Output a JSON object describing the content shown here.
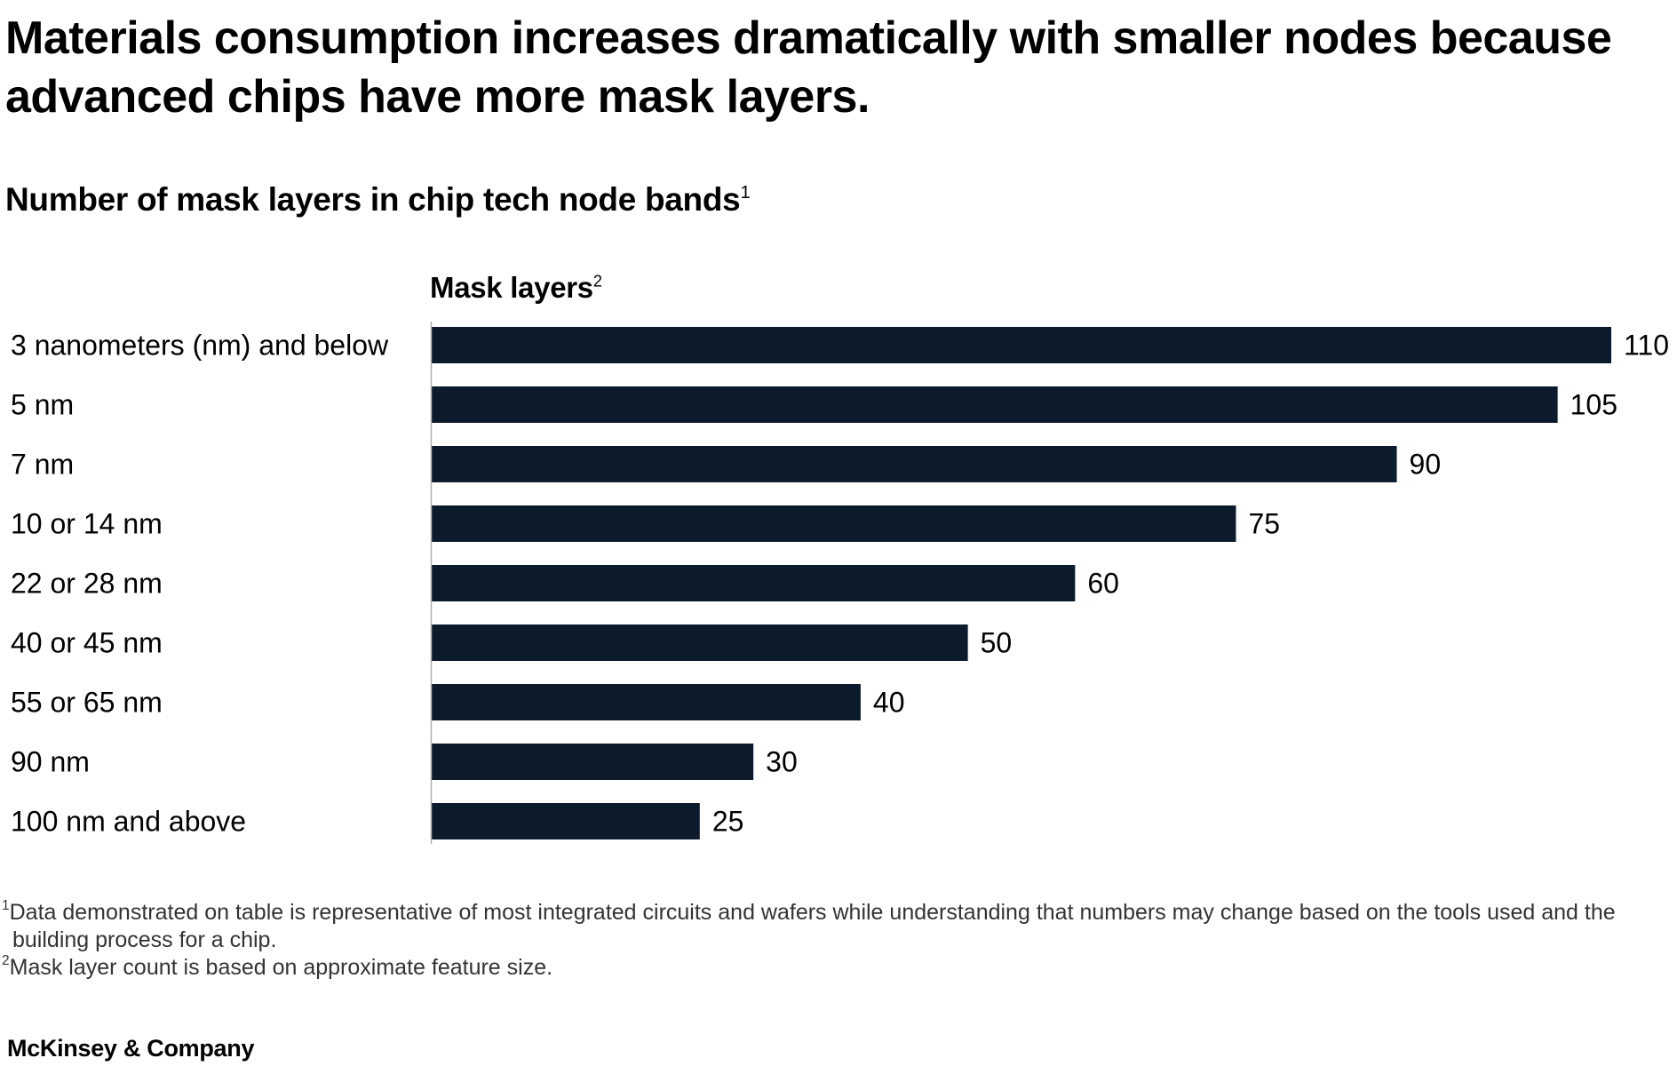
{
  "headline": "Materials consumption increases dramatically with smaller nodes because advanced chips have more mask layers.",
  "subtitle": {
    "text": "Number of mask layers in chip tech node bands",
    "note_ref": "1"
  },
  "chart_data": {
    "type": "bar",
    "orientation": "horizontal",
    "axis_title": "Mask layers",
    "axis_title_note_ref": "2",
    "categories": [
      "3 nanometers (nm) and below",
      "5 nm",
      "7 nm",
      "10 or 14 nm",
      "22 or 28 nm",
      "40 or 45 nm",
      "55 or 65 nm",
      "90 nm",
      "100 nm and above"
    ],
    "values": [
      110,
      105,
      90,
      75,
      60,
      50,
      40,
      30,
      25
    ],
    "value_labels": [
      "110",
      "105",
      "90",
      "75",
      "60",
      "50",
      "40",
      "30",
      "25"
    ],
    "xlim": [
      0,
      110
    ],
    "grid": false,
    "legend": "none",
    "bar_color": "#0b1b2b"
  },
  "footnotes": [
    {
      "marker": "1",
      "text": "Data demonstrated on table is representative of most integrated circuits and wafers while understanding that numbers may change based on the tools used and the building process for a chip."
    },
    {
      "marker": "2",
      "text": "Mask layer count is based on approximate feature size."
    }
  ],
  "source": "McKinsey & Company",
  "colors": {
    "bar": "#0b1b2b",
    "text": "#000000",
    "footnote_text": "#333333",
    "axis_line": "#b0b0b0"
  }
}
